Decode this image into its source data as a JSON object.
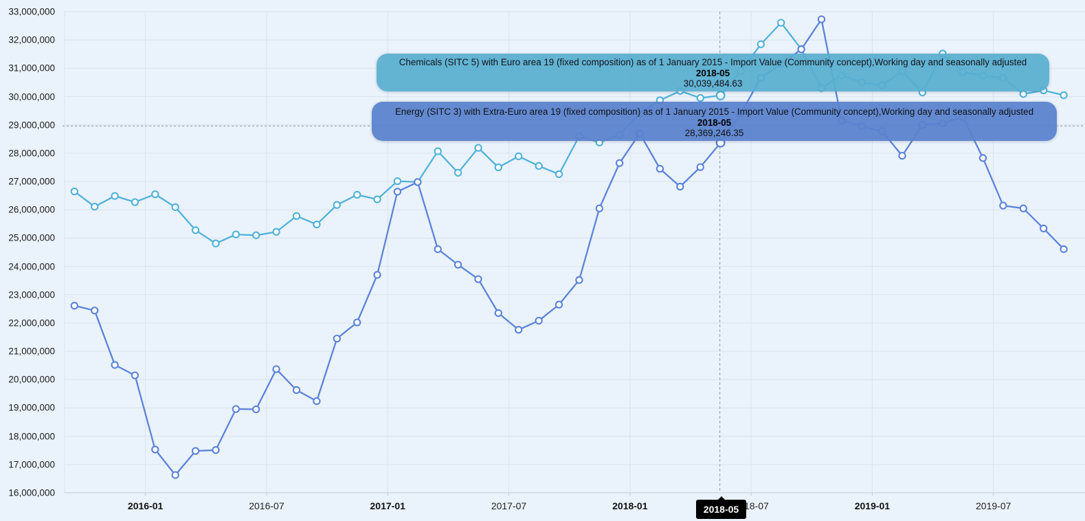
{
  "chart_data": {
    "type": "line",
    "x": [
      "2015-09",
      "2015-10",
      "2015-11",
      "2015-12",
      "2016-01",
      "2016-02",
      "2016-03",
      "2016-04",
      "2016-05",
      "2016-06",
      "2016-07",
      "2016-08",
      "2016-09",
      "2016-10",
      "2016-11",
      "2016-12",
      "2017-01",
      "2017-02",
      "2017-03",
      "2017-04",
      "2017-05",
      "2017-06",
      "2017-07",
      "2017-08",
      "2017-09",
      "2017-10",
      "2017-11",
      "2017-12",
      "2018-01",
      "2018-02",
      "2018-03",
      "2018-04",
      "2018-05",
      "2018-06",
      "2018-07",
      "2018-08",
      "2018-09",
      "2018-10",
      "2018-11",
      "2018-12",
      "2019-01",
      "2019-02",
      "2019-03",
      "2019-04",
      "2019-05",
      "2019-06",
      "2019-07",
      "2019-08",
      "2019-09",
      "2019-10"
    ],
    "series": [
      {
        "name": "Chemicals (SITC 5) with Euro area 19 (fixed composition) as of 1 January 2015 - Import Value (Community concept),Working day and seasonally adjusted",
        "color": "#50b2d9",
        "values": [
          26650000,
          26110000,
          26490000,
          26270000,
          26550000,
          26090000,
          25280000,
          24810000,
          25130000,
          25100000,
          25220000,
          25780000,
          25480000,
          26170000,
          26530000,
          26370000,
          27010000,
          26980000,
          28070000,
          27310000,
          28190000,
          27500000,
          27890000,
          27550000,
          27260000,
          28600000,
          28380000,
          28650000,
          29400000,
          29870000,
          30200000,
          29950000,
          30039484.63,
          30900000,
          31850000,
          32610000,
          31680000,
          30300000,
          30750000,
          30500000,
          30400000,
          30900000,
          30150000,
          31520000,
          30870000,
          30740000,
          30660000,
          30090000,
          30220000,
          30050000
        ]
      },
      {
        "name": "Energy (SITC 3) with Extra-Euro area 19 (fixed composition) as of 1 January 2015 - Import Value (Community concept),Working day and seasonally adjusted",
        "color": "#5b83d9",
        "values": [
          22610000,
          22440000,
          20520000,
          20150000,
          17530000,
          16630000,
          17480000,
          17510000,
          18960000,
          18950000,
          20370000,
          19630000,
          19240000,
          21450000,
          22020000,
          23700000,
          26640000,
          26980000,
          24610000,
          24060000,
          23550000,
          22350000,
          21760000,
          22080000,
          22650000,
          23520000,
          26050000,
          27650000,
          28700000,
          27450000,
          26820000,
          27510000,
          28369246.35,
          29400000,
          30660000,
          31150000,
          31670000,
          32730000,
          29150000,
          28950000,
          28780000,
          27910000,
          29000000,
          29050000,
          29280000,
          27830000,
          26150000,
          26050000,
          25340000,
          24610000
        ]
      }
    ],
    "ylim": [
      16000000,
      33000000
    ],
    "y_tick_labels": [
      "33,000,000",
      "32,000,000",
      "31,000,000",
      "30,000,000",
      "29,000,000",
      "28,000,000",
      "27,000,000",
      "26,000,000",
      "25,000,000",
      "24,000,000",
      "23,000,000",
      "22,000,000",
      "21,000,000",
      "20,000,000",
      "19,000,000",
      "18,000,000",
      "17,000,000",
      "16,000,000"
    ],
    "x_ticks": [
      {
        "label": "2016-01",
        "index": 4,
        "bold": true
      },
      {
        "label": "2016-07",
        "index": 10,
        "bold": false
      },
      {
        "label": "2017-01",
        "index": 16,
        "bold": true
      },
      {
        "label": "2017-07",
        "index": 22,
        "bold": false
      },
      {
        "label": "2018-01",
        "index": 28,
        "bold": true
      },
      {
        "label": "2018-07",
        "index": 34,
        "bold": false
      },
      {
        "label": "2019-01",
        "index": 40,
        "bold": true
      },
      {
        "label": "2019-07",
        "index": 46,
        "bold": false
      }
    ],
    "highlight_index": 32,
    "grid": true,
    "legend_position": "none"
  },
  "tooltips": {
    "chemicals": {
      "title": "Chemicals (SITC 5) with Euro area 19 (fixed composition) as of 1 January 2015 - Import Value (Community concept),Working day and seasonally adjusted",
      "date": "2018-05",
      "value": "30,039,484.63"
    },
    "energy": {
      "title": "Energy (SITC 3) with Extra-Euro area 19 (fixed composition) as of 1 January 2015 - Import Value (Community concept),Working day and seasonally adjusted",
      "date": "2018-05",
      "value": "28,369,246.35"
    }
  },
  "crosshair": {
    "x_label": "2018-05"
  },
  "colors": {
    "background": "#eaf2fb",
    "gridline": "#d9e3ef",
    "axis": "#bfcad8",
    "crosshair_v": "#a6adb8",
    "crosshair_h": "#b0b6bf",
    "value_text": "#e6194b",
    "chemicals_line": "#50b2d9",
    "energy_line": "#5b83d9",
    "marker_fill": "#ffffff"
  }
}
